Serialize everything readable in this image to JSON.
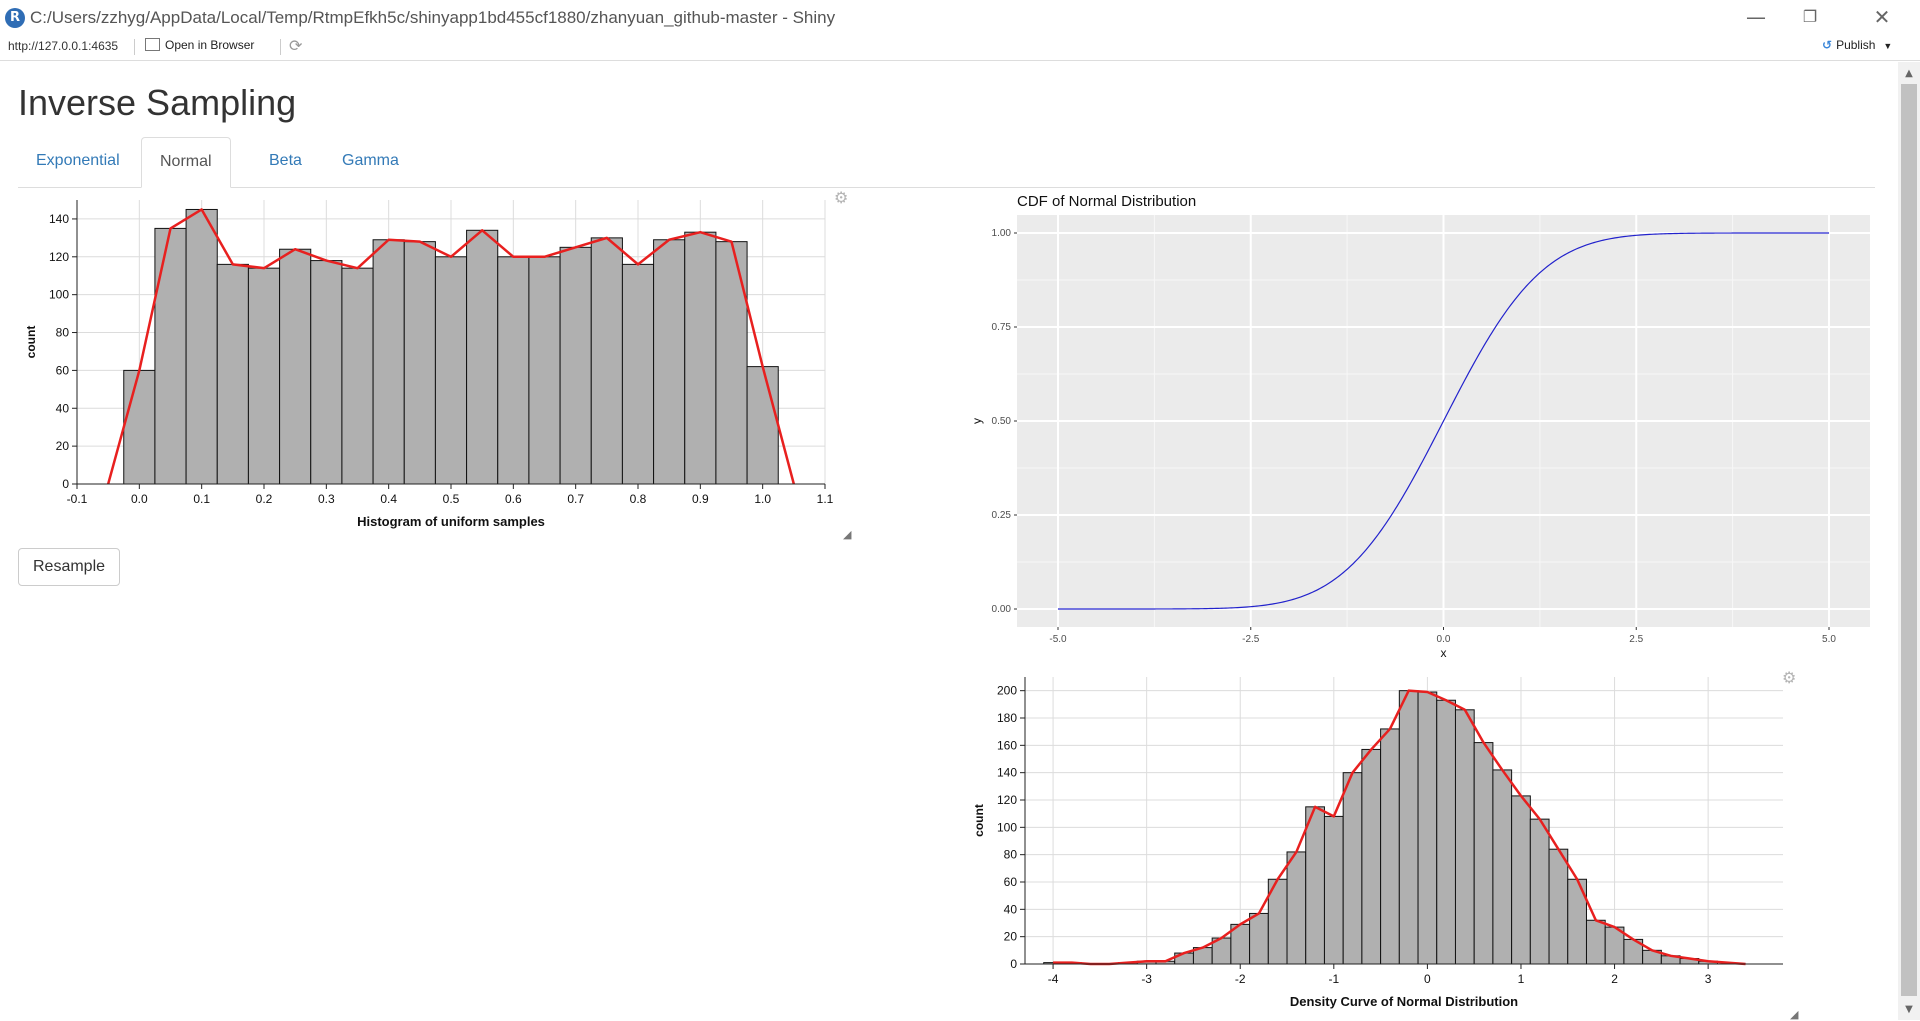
{
  "window": {
    "title": "C:/Users/zzhyg/AppData/Local/Temp/RtmpEfkh5c/shinyapp1bd455cf1880/zhanyuan_github-master - Shiny",
    "logo_letter": "R",
    "controls": [
      "minimize",
      "restore",
      "close"
    ]
  },
  "toolbar": {
    "url": "http://127.0.0.1:4635",
    "open_in_browser": "Open in Browser",
    "publish": "Publish"
  },
  "page": {
    "title": "Inverse Sampling",
    "tabs": [
      {
        "label": "Exponential",
        "active": false
      },
      {
        "label": "Normal",
        "active": true
      },
      {
        "label": "Beta",
        "active": false
      },
      {
        "label": "Gamma",
        "active": false
      }
    ],
    "resample_label": "Resample"
  },
  "chart_data": [
    {
      "type": "bar",
      "description_role": "histogram with frequency polygon",
      "title": "",
      "xlabel": "Histogram of uniform samples",
      "ylabel": "count",
      "xlim": [
        -0.1,
        1.1
      ],
      "ylim": [
        0,
        150
      ],
      "xticks": [
        -0.1,
        0.0,
        0.1,
        0.2,
        0.3,
        0.4,
        0.5,
        0.6,
        0.7,
        0.8,
        0.9,
        1.0,
        1.1
      ],
      "yticks": [
        0,
        20,
        40,
        60,
        80,
        100,
        120,
        140
      ],
      "bin_start": -0.025,
      "bin_width": 0.05,
      "values": [
        60,
        135,
        145,
        116,
        114,
        124,
        118,
        114,
        129,
        128,
        120,
        134,
        120,
        120,
        125,
        130,
        116,
        129,
        133,
        128,
        62
      ],
      "line_x": [
        -0.05,
        0.0,
        0.05,
        0.1,
        0.15,
        0.2,
        0.25,
        0.3,
        0.35,
        0.4,
        0.45,
        0.5,
        0.55,
        0.6,
        0.65,
        0.7,
        0.75,
        0.8,
        0.85,
        0.9,
        0.95,
        1.0,
        1.05
      ],
      "line_y": [
        0,
        60,
        135,
        145,
        116,
        114,
        124,
        118,
        114,
        129,
        128,
        120,
        134,
        120,
        120,
        125,
        130,
        116,
        129,
        133,
        128,
        62,
        0
      ],
      "colors": {
        "bar": "#b0b0b0",
        "line": "#e8201f"
      }
    },
    {
      "type": "line",
      "title": "CDF of Normal Distribution",
      "xlabel": "x",
      "ylabel": "y",
      "xlim": [
        -5.0,
        5.0
      ],
      "ylim": [
        0.0,
        1.0
      ],
      "xticks": [
        "-5.0",
        "-2.5",
        "0.0",
        "2.5",
        "5.0"
      ],
      "yticks": [
        "0.00",
        "0.25",
        "0.50",
        "0.75",
        "1.00"
      ],
      "x": [
        -5.0,
        -4.0,
        -3.0,
        -2.5,
        -2.0,
        -1.5,
        -1.0,
        -0.5,
        0.0,
        0.5,
        1.0,
        1.5,
        2.0,
        2.5,
        3.0,
        4.0,
        5.0
      ],
      "y": [
        0.0,
        0.0,
        0.001,
        0.006,
        0.023,
        0.067,
        0.159,
        0.309,
        0.5,
        0.691,
        0.841,
        0.933,
        0.977,
        0.994,
        0.999,
        1.0,
        1.0
      ],
      "grid": true,
      "colors": {
        "line": "#2222cc",
        "panel": "#ebebeb"
      }
    },
    {
      "type": "bar",
      "description_role": "histogram with frequency polygon",
      "title": "",
      "xlabel": "Density Curve of Normal Distribution",
      "ylabel": "count",
      "xlim": [
        -4.3,
        3.8
      ],
      "ylim": [
        0,
        210
      ],
      "xticks": [
        -4,
        -3,
        -2,
        -1,
        0,
        1,
        2,
        3
      ],
      "yticks": [
        0,
        20,
        40,
        60,
        80,
        100,
        120,
        140,
        160,
        180,
        200
      ],
      "bin_start": -4.1,
      "bin_width": 0.2,
      "values": [
        1,
        1,
        0,
        0,
        1,
        2,
        2,
        8,
        12,
        19,
        29,
        37,
        62,
        82,
        115,
        108,
        140,
        157,
        172,
        200,
        199,
        193,
        186,
        162,
        142,
        123,
        106,
        84,
        62,
        32,
        27,
        18,
        10,
        6,
        4,
        2
      ],
      "line_x": [
        -4.0,
        -3.8,
        -3.6,
        -3.4,
        -3.2,
        -3.0,
        -2.8,
        -2.6,
        -2.4,
        -2.2,
        -2.0,
        -1.8,
        -1.6,
        -1.4,
        -1.2,
        -1.0,
        -0.8,
        -0.6,
        -0.4,
        -0.2,
        0.0,
        0.2,
        0.4,
        0.6,
        0.8,
        1.0,
        1.2,
        1.4,
        1.6,
        1.8,
        2.0,
        2.2,
        2.4,
        2.6,
        2.8,
        3.0,
        3.2,
        3.4
      ],
      "line_y": [
        1,
        1,
        0,
        0,
        1,
        2,
        2,
        8,
        12,
        19,
        29,
        37,
        62,
        82,
        115,
        108,
        140,
        157,
        172,
        200,
        199,
        193,
        186,
        162,
        142,
        123,
        106,
        84,
        62,
        32,
        27,
        18,
        10,
        6,
        4,
        2,
        1,
        0
      ],
      "colors": {
        "bar": "#b0b0b0",
        "line": "#e8201f"
      }
    }
  ]
}
